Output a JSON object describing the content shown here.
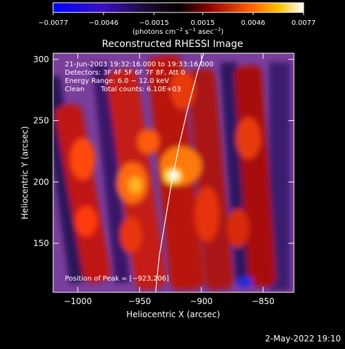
{
  "colorbar": {
    "ticks": [
      -0.0077,
      -0.0046,
      -0.0015,
      0.0015,
      0.0046,
      0.0077
    ],
    "tick_labels": [
      "−0.0077",
      "−0.0046",
      "−0.0015",
      "0.0015",
      "0.0046",
      "0.0077"
    ],
    "units_label_parts": [
      "(photons cm",
      "−2",
      " s",
      "−1",
      " asec",
      "−2",
      ")"
    ],
    "range": [
      -0.0077,
      0.0077
    ],
    "colors": [
      "#0000ff",
      "#000000",
      "#ff7a00",
      "#ffffff"
    ]
  },
  "chart_data": {
    "type": "heatmap",
    "title": "Reconstructed RHESSI Image",
    "xlabel": "Heliocentric X (arcsec)",
    "ylabel": "Heliocentric Y (arcsec)",
    "xlim": [
      -1020,
      -825
    ],
    "ylim": [
      110,
      305
    ],
    "xticks": [
      -1000,
      -950,
      -900,
      -850
    ],
    "xtick_labels": [
      "−1000",
      "−950",
      "−900",
      "−850"
    ],
    "yticks": [
      150,
      200,
      250,
      300
    ],
    "ytick_labels": [
      "150",
      "200",
      "250",
      "300"
    ],
    "peak": [
      -923,
      206
    ],
    "annotations": {
      "time_range": "21-Jun-2003 19:32:16.000 to 19:33:16.000",
      "detectors": "Detectors: 3F 4F 5F 6F 7F 8F, Att 0",
      "energy": "Energy Range: 6.0 − 12.0 keV",
      "method": "Clean",
      "total_counts": "Total counts: 6.10E+03",
      "peak_position": "Position of Peak = [−923,206]"
    },
    "limb_points": [
      [
        -937,
        110
      ],
      [
        -934,
        140
      ],
      [
        -929,
        170
      ],
      [
        -924,
        200
      ],
      [
        -918,
        230
      ],
      [
        -911,
        260
      ],
      [
        -903,
        290
      ],
      [
        -898,
        305
      ]
    ]
  },
  "footer": {
    "date": "2-May-2022 19:10"
  }
}
